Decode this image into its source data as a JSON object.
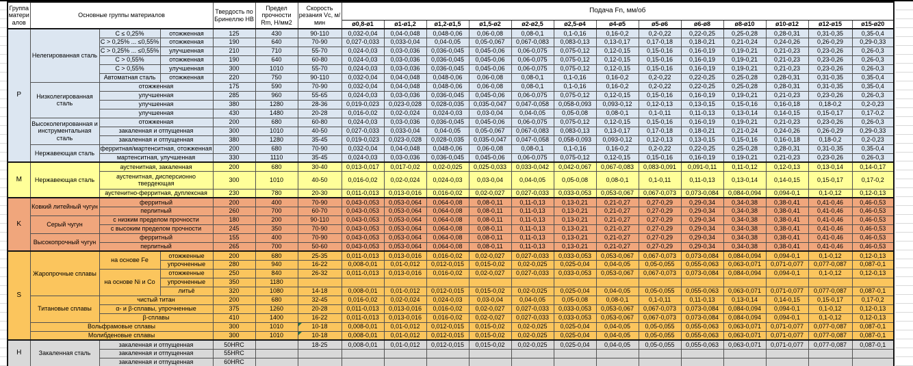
{
  "table": {
    "header": {
      "group": "Группа материалов",
      "main_groups": "Основные группы материалов",
      "hardness": "Твердость по Бринеллю HB",
      "strength": "Предел прочности Rm, Н/мм2",
      "speed": "Скорость резания Vc, м/мин",
      "feed": "Подача Fn, мм/об",
      "feed_cols": [
        "ø0,8-ø1",
        "ø1-ø1,2",
        "ø1,2-ø1,5",
        "ø1,5-ø2",
        "ø2-ø2,5",
        "ø2,5-ø4",
        "ø4-ø5",
        "ø5-ø6",
        "ø6-ø8",
        "ø8-ø10",
        "ø10-ø12",
        "ø12-ø15",
        "ø15-ø20"
      ]
    },
    "error_flag_color": "#217346",
    "feed_patterns": {
      "A": [
        "0,032-0,04",
        "0,04-0,048",
        "0,048-0,06",
        "0,06-0,08",
        "0,08-0,1",
        "0,1-0,16",
        "0,16-0,2",
        "0,2-0,22",
        "0,22-0,25",
        "0,25-0,28",
        "0,28-0,31",
        "0,31-0,35",
        "0,35-0,4"
      ],
      "B": [
        "0,027-0,033",
        "0,033-0,04",
        "0,04-0,05",
        "0,05-0,067",
        "0,067-0,083",
        "0,083-0,13",
        "0,13-0,17",
        "0,17-0,18",
        "0,18-0,21",
        "0,21-0,24",
        "0,24-0,26",
        "0,26-0,29",
        "0,29-0,33"
      ],
      "C": [
        "0,024-0,03",
        "0,03-0,036",
        "0,036-0,045",
        "0,045-0,06",
        "0,06-0,075",
        "0,075-0,12",
        "0,12-0,15",
        "0,15-0,16",
        "0,16-0,19",
        "0,19-0,21",
        "0,21-0,23",
        "0,23-0,26",
        "0,26-0,3"
      ],
      "D": [
        "0,019-0,023",
        "0,023-0,028",
        "0,028-0,035",
        "0,035-0,047",
        "0,047-0,058",
        "0,058-0,093",
        "0,093-0,12",
        "0,12-0,13",
        "0,13-0,15",
        "0,15-0,16",
        "0,16-0,18",
        "0,18-0,2",
        "0,2-0,23"
      ],
      "E": [
        "0,016-0,02",
        "0,02-0,024",
        "0,024-0,03",
        "0,03-0,04",
        "0,04-0,05",
        "0,05-0,08",
        "0,08-0,1",
        "0,1-0,11",
        "0,11-0,13",
        "0,13-0,14",
        "0,14-0,15",
        "0,15-0,17",
        "0,17-0,2"
      ],
      "F": [
        "0,013-0,017",
        "0,017-0,02",
        "0,02-0,025",
        "0,025-0,033",
        "0,033-0,042",
        "0,042-0,067",
        "0,067-0,083",
        "0,083-0,091",
        "0,091-0,11",
        "0,11-0,12",
        "0,12-0,13",
        "0,13-0,14",
        "0,14-0,17"
      ],
      "G": [
        "0,011-0,013",
        "0,013-0,016",
        "0,016-0,02",
        "0,02-0,027",
        "0,027-0,033",
        "0,033-0,053",
        "0,053-0,067",
        "0,067-0,073",
        "0,073-0,084",
        "0,084-0,094",
        "0,094-0,1",
        "0,1-0,12",
        "0,12-0,13"
      ],
      "H": [
        "0,043-0,053",
        "0,053-0,064",
        "0,064-0,08",
        "0,08-0,11",
        "0,11-0,13",
        "0,13-0,21",
        "0,21-0,27",
        "0,27-0,29",
        "0,29-0,34",
        "0,34-0,38",
        "0,38-0,41",
        "0,41-0,46",
        "0,46-0,53"
      ],
      "I": [
        "0,008-0,01",
        "0,01-0,012",
        "0,012-0,015",
        "0,015-0,02",
        "0,02-0,025",
        "0,025-0,04",
        "0,04-0,05",
        "0,05-0,055",
        "0,055-0,063",
        "0,063-0,071",
        "0,071-0,077",
        "0,077-0,087",
        "0,087-0,1"
      ]
    },
    "groups": [
      {
        "letter": "P",
        "color": "#dce6f1",
        "rows": [
          {
            "cells": [
              {
                "t": "Нелегированная сталь",
                "rs": 6
              },
              {
                "t": "C ≤ 0,25%"
              },
              {
                "t": "отожженная"
              }
            ],
            "hb": "125",
            "rm": "430",
            "vc": "90-110",
            "pattern": "A"
          },
          {
            "cells": [
              {
                "t": "C > 0,25% ... ≤0,55%"
              },
              {
                "t": "отожженная"
              }
            ],
            "hb": "190",
            "rm": "640",
            "vc": "70-90",
            "pattern": "B"
          },
          {
            "cells": [
              {
                "t": "C > 0,25% ... ≤0,55%"
              },
              {
                "t": "улучшенная"
              }
            ],
            "hb": "210",
            "rm": "710",
            "vc": "55-70",
            "pattern": "C"
          },
          {
            "cells": [
              {
                "t": "C > 0,55%"
              },
              {
                "t": "отожженная"
              }
            ],
            "hb": "190",
            "rm": "640",
            "vc": "60-80",
            "pattern": "C"
          },
          {
            "cells": [
              {
                "t": "C > 0,55%"
              },
              {
                "t": "улучшенная"
              }
            ],
            "hb": "300",
            "rm": "1010",
            "vc": "55-70",
            "pattern": "C"
          },
          {
            "cells": [
              {
                "t": "Автоматная сталь"
              },
              {
                "t": "отожженная"
              }
            ],
            "hb": "220",
            "rm": "750",
            "vc": "90-110",
            "pattern": "A"
          },
          {
            "cells": [
              {
                "t": "Низколегированная сталь",
                "rs": 4
              },
              {
                "t": "отожженная",
                "cs": 2
              }
            ],
            "hb": "175",
            "rm": "590",
            "vc": "70-90",
            "pattern": "A"
          },
          {
            "cells": [
              {
                "t": "улучшенная",
                "cs": 2
              }
            ],
            "hb": "285",
            "rm": "960",
            "vc": "55-65",
            "pattern": "C"
          },
          {
            "cells": [
              {
                "t": "улучшенная",
                "cs": 2
              }
            ],
            "hb": "380",
            "rm": "1280",
            "vc": "28-36",
            "pattern": "D"
          },
          {
            "cells": [
              {
                "t": "улучшенная",
                "cs": 2
              }
            ],
            "hb": "430",
            "rm": "1480",
            "vc": "20-28",
            "pattern": "E"
          },
          {
            "cells": [
              {
                "t": "Высоколегированная и инструментальная сталь",
                "rs": 3
              },
              {
                "t": "отожженная",
                "cs": 2
              }
            ],
            "hb": "200",
            "rm": "680",
            "vc": "60-80",
            "pattern": "C"
          },
          {
            "cells": [
              {
                "t": "закаленная и отпущенная",
                "cs": 2
              }
            ],
            "hb": "300",
            "rm": "1010",
            "vc": "40-50",
            "pattern": "B"
          },
          {
            "cells": [
              {
                "t": "закаленная и отпущенная",
                "cs": 2
              }
            ],
            "hb": "380",
            "rm": "1280",
            "vc": "35-45",
            "pattern": "D"
          },
          {
            "cells": [
              {
                "t": "Нержавеющая сталь",
                "rs": 2
              },
              {
                "t": "ферритная/мартенситная, отожженная",
                "cs": 2
              }
            ],
            "hb": "200",
            "rm": "680",
            "vc": "70-90",
            "pattern": "A"
          },
          {
            "cells": [
              {
                "t": "мартенситная, улучшенная",
                "cs": 2
              }
            ],
            "hb": "330",
            "rm": "1110",
            "vc": "35-45",
            "pattern": "C"
          }
        ]
      },
      {
        "letter": "M",
        "color": "#ffff99",
        "rows": [
          {
            "cells": [
              {
                "t": "Нержавеющая сталь",
                "rs": 3
              },
              {
                "t": "аустенитная, закаленная",
                "cs": 2
              }
            ],
            "hb": "200",
            "rm": "680",
            "vc": "30-40",
            "pattern": "F"
          },
          {
            "cells": [
              {
                "t": "аустенитная, дисперсионно твердеющая",
                "cs": 2
              }
            ],
            "hb": "300",
            "rm": "1010",
            "vc": "40-50",
            "pattern": "E",
            "tall": true
          },
          {
            "cells": [
              {
                "t": "аустенитно-ферритная, дуплексная",
                "cs": 2
              }
            ],
            "hb": "230",
            "rm": "780",
            "vc": "20-30",
            "pattern": "G"
          }
        ]
      },
      {
        "letter": "K",
        "color": "#f0a67c",
        "rows": [
          {
            "cells": [
              {
                "t": "Ковкий литейный чугун",
                "rs": 2
              },
              {
                "t": "ферритный",
                "cs": 2
              }
            ],
            "hb": "200",
            "rm": "400",
            "vc": "70-90",
            "pattern": "H"
          },
          {
            "cells": [
              {
                "t": "перлитный",
                "cs": 2
              }
            ],
            "hb": "260",
            "rm": "700",
            "vc": "60-70",
            "pattern": "H"
          },
          {
            "cells": [
              {
                "t": "Серый чугун",
                "rs": 2
              },
              {
                "t": "с низким пределом прочности",
                "cs": 2
              }
            ],
            "hb": "180",
            "rm": "200",
            "vc": "90-110",
            "pattern": "H"
          },
          {
            "cells": [
              {
                "t": "с высоким пределом прочности",
                "cs": 2
              }
            ],
            "hb": "245",
            "rm": "350",
            "vc": "70-90",
            "pattern": "H"
          },
          {
            "cells": [
              {
                "t": "Высокопрочный чугун",
                "rs": 2
              },
              {
                "t": "ферритный",
                "cs": 2
              }
            ],
            "hb": "155",
            "rm": "400",
            "vc": "70-90",
            "pattern": "H"
          },
          {
            "cells": [
              {
                "t": "перлитный",
                "cs": 2
              }
            ],
            "hb": "265",
            "rm": "700",
            "vc": "50-60",
            "pattern": "H"
          }
        ]
      },
      {
        "letter": "S",
        "color": "#fbc55d",
        "rows": [
          {
            "cells": [
              {
                "t": "Жаропрочные сплавы",
                "rs": 5
              },
              {
                "t": "на основе Fe",
                "rs": 2
              },
              {
                "t": "отожженные"
              }
            ],
            "hb": "200",
            "rm": "680",
            "vc": "25-35",
            "pattern": "G"
          },
          {
            "cells": [
              {
                "t": "упрочненные"
              }
            ],
            "hb": "280",
            "rm": "940",
            "vc": "16-22",
            "pattern": "I"
          },
          {
            "cells": [
              {
                "t": "на основе Ni и Co",
                "rs": 3
              },
              {
                "t": "отожженные"
              }
            ],
            "hb": "250",
            "rm": "840",
            "vc": "26-32",
            "pattern": "G"
          },
          {
            "cells": [
              {
                "t": "упрочненные"
              }
            ],
            "hb": "350",
            "rm": "1180",
            "vc": "",
            "pattern": null
          },
          {
            "cells": [
              {
                "t": "литьё"
              }
            ],
            "hb": "320",
            "rm": "1080",
            "vc": "14-18",
            "pattern": "I"
          },
          {
            "cells": [
              {
                "t": "Титановые сплавы",
                "rs": 3
              },
              {
                "t": "чистый титан",
                "cs": 2
              }
            ],
            "hb": "200",
            "rm": "680",
            "vc": "32-45",
            "pattern": "E"
          },
          {
            "cells": [
              {
                "t": "α- и β-сплавы, упрочненные",
                "cs": 2
              }
            ],
            "hb": "375",
            "rm": "1260",
            "vc": "20-28",
            "pattern": "G"
          },
          {
            "cells": [
              {
                "t": "β-сплавы",
                "cs": 2
              }
            ],
            "hb": "410",
            "rm": "1400",
            "vc": "16-22",
            "pattern": "G"
          },
          {
            "cells": [
              {
                "t": "Вольфрамовые сплавы",
                "cs": 3
              }
            ],
            "hb": "300",
            "rm": "1010",
            "vc": "10-18",
            "pattern": "I",
            "flag": true
          },
          {
            "cells": [
              {
                "t": "Молибденовые сплавы",
                "cs": 3
              }
            ],
            "hb": "300",
            "rm": "1010",
            "vc": "10-18",
            "pattern": "I",
            "flag": true
          }
        ]
      },
      {
        "letter": "H",
        "color": "#d9d9d9",
        "rows": [
          {
            "cells": [
              {
                "t": "Закаленная сталь",
                "rs": 3
              },
              {
                "t": "закаленная и отпущенная",
                "cs": 2
              }
            ],
            "hb": "50HRC",
            "rm": "",
            "vc": "18-25",
            "pattern": "I"
          },
          {
            "cells": [
              {
                "t": "закаленная и отпущенная",
                "cs": 2
              }
            ],
            "hb": "55HRC",
            "rm": "",
            "vc": "",
            "pattern": null
          },
          {
            "cells": [
              {
                "t": "закаленная и отпущенная",
                "cs": 2
              }
            ],
            "hb": "60HRC",
            "rm": "",
            "vc": "",
            "pattern": null
          }
        ]
      }
    ]
  }
}
